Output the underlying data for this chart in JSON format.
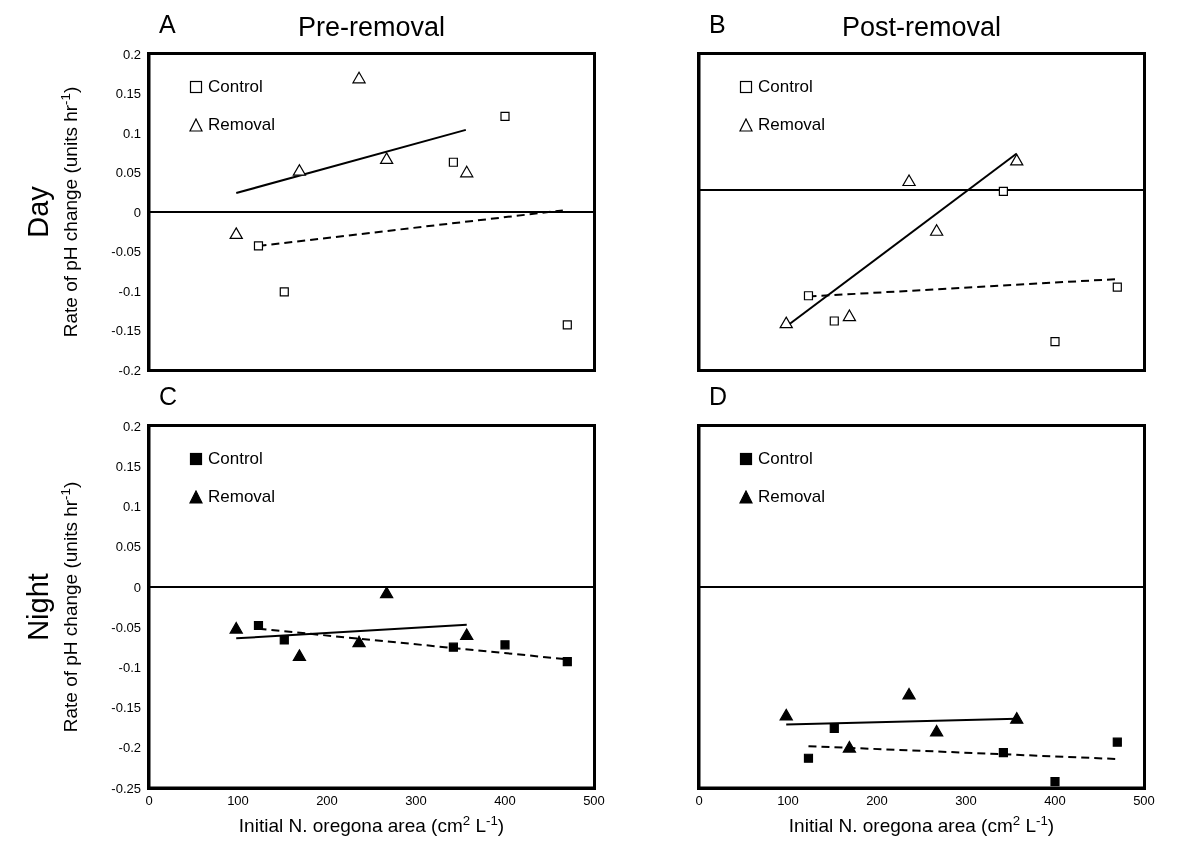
{
  "chart_data": [
    {
      "type": "scatter",
      "title": "Pre-removal",
      "ylabel": "Rate of pH change (units hr$^{-1}$)",
      "annotations": [
        "A",
        "Day"
      ],
      "xlim": [
        0,
        500
      ],
      "ylim": [
        -0.2,
        0.2
      ],
      "yticks": [
        -0.2,
        -0.15,
        -0.1,
        -0.05,
        0,
        0.05,
        0.1,
        0.15,
        0.2
      ],
      "tick_labels": "y",
      "legend": "top left",
      "ref_lines": [
        {
          "axis": "y",
          "value": 0,
          "color": "#000000"
        }
      ],
      "series": [
        {
          "name": "Control",
          "marker": "square",
          "color": "#ffffff",
          "x": [
            123,
            152,
            342,
            400,
            470
          ],
          "values": [
            -0.043,
            -0.101,
            0.063,
            0.121,
            -0.143
          ]
        },
        {
          "name": "Removal",
          "marker": "triangle",
          "color": "#ffffff",
          "x": [
            98,
            169,
            236,
            267,
            357
          ],
          "values": [
            -0.029,
            0.051,
            0.168,
            0.066,
            0.049
          ]
        },
        {
          "type": "line",
          "line_style": "solid",
          "color": "#000000",
          "x": [
            98,
            356
          ],
          "values": [
            0.024,
            0.104
          ]
        },
        {
          "type": "line",
          "line_style": "dashed",
          "color": "#000000",
          "x": [
            123,
            465
          ],
          "values": [
            -0.043,
            0.002
          ]
        }
      ]
    },
    {
      "type": "scatter",
      "title": "Post-removal",
      "annotations": [
        "B"
      ],
      "xlim": [
        0,
        500
      ],
      "ylim": [
        -0.2,
        0.2
      ],
      "tick_labels": false,
      "legend": "top left",
      "ref_lines": [
        {
          "axis": "y",
          "value": 0.028,
          "color": "#000000"
        }
      ],
      "series": [
        {
          "name": "Control",
          "marker": "square",
          "color": "#ffffff",
          "x": [
            123,
            152,
            342,
            400,
            470
          ],
          "values": [
            -0.106,
            -0.138,
            0.026,
            -0.164,
            -0.095
          ]
        },
        {
          "name": "Removal",
          "marker": "triangle",
          "color": "#ffffff",
          "x": [
            98,
            169,
            236,
            267,
            357
          ],
          "values": [
            -0.142,
            -0.133,
            0.038,
            -0.025,
            0.064
          ]
        },
        {
          "type": "line",
          "line_style": "solid",
          "color": "#000000",
          "x": [
            98,
            357
          ],
          "values": [
            -0.145,
            0.074
          ]
        },
        {
          "type": "line",
          "line_style": "dashed",
          "color": "#000000",
          "x": [
            123,
            468
          ],
          "values": [
            -0.107,
            -0.085
          ]
        }
      ]
    },
    {
      "type": "scatter",
      "xlabel": "Initial N. oregona area (cm$^{2}$ L$^{-1}$)",
      "ylabel": "Rate of pH change (units hr$^{-1}$)",
      "annotations": [
        "C",
        "Night"
      ],
      "xlim": [
        0,
        500
      ],
      "xticks": [
        0,
        100,
        200,
        300,
        400,
        500
      ],
      "ylim": [
        -0.25,
        0.2
      ],
      "yticks": [
        -0.25,
        -0.2,
        -0.15,
        -0.1,
        -0.05,
        0,
        0.05,
        0.1,
        0.15,
        0.2
      ],
      "legend": "top left",
      "ref_lines": [
        {
          "axis": "y",
          "value": 0,
          "color": "#000000"
        }
      ],
      "series": [
        {
          "name": "Control",
          "marker": "square",
          "color": "#000000",
          "x": [
            123,
            152,
            342,
            400,
            470
          ],
          "values": [
            -0.048,
            -0.066,
            -0.075,
            -0.072,
            -0.093
          ]
        },
        {
          "name": "Removal",
          "marker": "triangle",
          "color": "#000000",
          "x": [
            98,
            169,
            236,
            267,
            357
          ],
          "values": [
            -0.053,
            -0.087,
            -0.07,
            -0.009,
            -0.061
          ]
        },
        {
          "type": "line",
          "line_style": "solid",
          "color": "#000000",
          "x": [
            98,
            357
          ],
          "values": [
            -0.064,
            -0.047
          ]
        },
        {
          "type": "line",
          "line_style": "dashed",
          "color": "#000000",
          "x": [
            123,
            470
          ],
          "values": [
            -0.052,
            -0.09
          ]
        }
      ]
    },
    {
      "type": "scatter",
      "xlabel": "Initial N. oregona area (cm$^{2}$ L$^{-1}$)",
      "annotations": [
        "D"
      ],
      "xlim": [
        0,
        500
      ],
      "xticks": [
        0,
        100,
        200,
        300,
        400,
        500
      ],
      "ylim": [
        -0.25,
        0.2
      ],
      "tick_labels": "x",
      "legend": "top left",
      "ref_lines": [
        {
          "axis": "y",
          "value": 0,
          "color": "#000000"
        }
      ],
      "series": [
        {
          "name": "Control",
          "marker": "square",
          "color": "#000000",
          "x": [
            123,
            152,
            342,
            400,
            470
          ],
          "values": [
            -0.213,
            -0.176,
            -0.206,
            -0.242,
            -0.193
          ]
        },
        {
          "name": "Removal",
          "marker": "triangle",
          "color": "#000000",
          "x": [
            98,
            169,
            236,
            267,
            357
          ],
          "values": [
            -0.161,
            -0.201,
            -0.135,
            -0.181,
            -0.165
          ]
        },
        {
          "type": "line",
          "line_style": "solid",
          "color": "#000000",
          "x": [
            98,
            357
          ],
          "values": [
            -0.171,
            -0.164
          ]
        },
        {
          "type": "line",
          "line_style": "dashed",
          "color": "#000000",
          "x": [
            123,
            470
          ],
          "values": [
            -0.198,
            -0.214
          ]
        }
      ]
    }
  ]
}
